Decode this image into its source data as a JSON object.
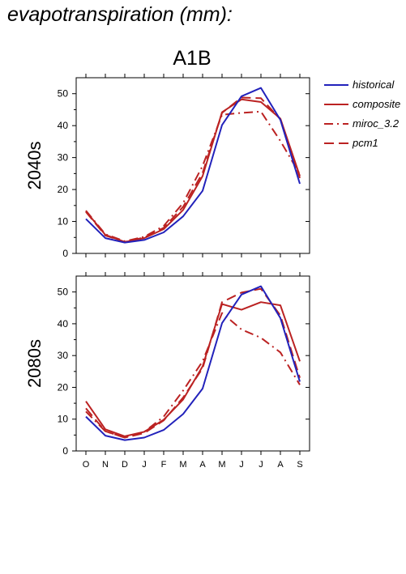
{
  "figure": {
    "title": "evapotranspiration (mm):",
    "scenario": "A1B"
  },
  "colors": {
    "historical": "#2222bb",
    "composite": "#bb2222",
    "miroc_3.2": "#bb2222",
    "pcm1": "#bb2222"
  },
  "legend": {
    "placement": "right",
    "items": [
      {
        "label": "historical",
        "color": "#2222bb",
        "dash": "solid"
      },
      {
        "label": "composite",
        "color": "#bb2222",
        "dash": "solid"
      },
      {
        "label": "miroc_3.2",
        "color": "#bb2222",
        "dash": "dashdot"
      },
      {
        "label": "pcm1",
        "color": "#bb2222",
        "dash": "dashed"
      }
    ]
  },
  "chart_data": [
    {
      "type": "line",
      "title": "A1B",
      "ylabel": "2040s",
      "xlabel": "",
      "categories": [
        "O",
        "N",
        "D",
        "J",
        "F",
        "M",
        "A",
        "M",
        "J",
        "J",
        "A",
        "S"
      ],
      "ylim": [
        0,
        55
      ],
      "yticks": [
        0,
        10,
        20,
        30,
        40,
        50
      ],
      "grid": false,
      "series": [
        {
          "name": "historical",
          "values": [
            10.8,
            4.8,
            3.4,
            4.2,
            6.6,
            11.6,
            19.6,
            40.2,
            49.2,
            51.8,
            41.8,
            21.8
          ]
        },
        {
          "name": "composite",
          "values": [
            13.2,
            5.8,
            3.6,
            4.8,
            7.6,
            13.6,
            24.2,
            44.2,
            48.2,
            47.4,
            42.2,
            24.2
          ]
        },
        {
          "name": "miroc_3.2",
          "values": [
            13.4,
            6.0,
            3.8,
            5.2,
            8.6,
            15.8,
            27.4,
            43.4,
            44.0,
            44.4,
            35.2,
            24.8
          ]
        },
        {
          "name": "pcm1",
          "values": [
            13.0,
            5.6,
            3.6,
            5.0,
            8.0,
            14.6,
            25.2,
            44.0,
            48.8,
            48.6,
            42.0,
            23.6
          ]
        }
      ]
    },
    {
      "type": "line",
      "title": "",
      "ylabel": "2080s",
      "xlabel": "",
      "categories": [
        "O",
        "N",
        "D",
        "J",
        "F",
        "M",
        "A",
        "M",
        "J",
        "J",
        "A",
        "S"
      ],
      "ylim": [
        0,
        55
      ],
      "yticks": [
        0,
        10,
        20,
        30,
        40,
        50
      ],
      "grid": false,
      "series": [
        {
          "name": "historical",
          "values": [
            10.8,
            4.8,
            3.4,
            4.2,
            6.6,
            11.6,
            19.6,
            40.2,
            49.2,
            51.8,
            41.8,
            21.8
          ]
        },
        {
          "name": "composite",
          "values": [
            15.6,
            6.8,
            4.6,
            6.0,
            9.8,
            16.2,
            26.6,
            46.2,
            44.4,
            46.8,
            45.8,
            28.2
          ]
        },
        {
          "name": "miroc_3.2",
          "values": [
            12.4,
            6.2,
            4.2,
            6.0,
            10.8,
            19.0,
            28.2,
            43.4,
            38.2,
            35.6,
            31.0,
            20.8
          ]
        },
        {
          "name": "pcm1",
          "values": [
            13.4,
            6.2,
            4.2,
            5.6,
            9.6,
            16.8,
            26.0,
            46.8,
            49.8,
            51.0,
            42.6,
            23.0
          ]
        }
      ]
    }
  ]
}
